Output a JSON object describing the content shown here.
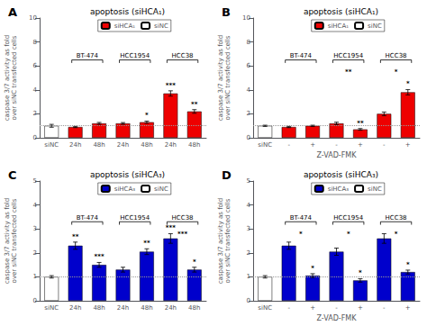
{
  "chart_data": [
    {
      "type": "bar",
      "panel_label": "A",
      "title": "apoptosis (siHCA₁)",
      "ylabel": "caspase 3/7 activity as fold\nover siNC transfected cells",
      "categories": [
        "siNC",
        "24h",
        "48h",
        "24h",
        "48h",
        "24h",
        "48h"
      ],
      "series": [
        {
          "name": "siHCA₁",
          "color": "#EE0000",
          "values": [
            null,
            0.9,
            1.2,
            1.2,
            1.3,
            3.7,
            2.2
          ],
          "errors": [
            null,
            0.05,
            0.08,
            0.07,
            0.09,
            0.22,
            0.15
          ],
          "stars": [
            null,
            null,
            null,
            null,
            "*",
            "***",
            "**"
          ]
        },
        {
          "name": "siNC",
          "color": "#FFFFFF",
          "values": [
            1.0,
            null,
            null,
            null,
            null,
            null,
            null
          ],
          "errors": [
            0.12,
            null,
            null,
            null,
            null,
            null,
            null
          ]
        }
      ],
      "brackets": [
        {
          "label": "BT-474",
          "star": null
        },
        {
          "label": "HCC1954",
          "star": null
        },
        {
          "label": "HCC38",
          "star": null
        }
      ],
      "bracket_y": 6.5,
      "hline": {
        "value": 1.0,
        "color": "#999999",
        "line_style": "dotted"
      },
      "ylim": [
        0,
        10
      ],
      "yticks": [
        0,
        2,
        4,
        6,
        8,
        10
      ],
      "grid": false,
      "legend": "top"
    },
    {
      "type": "bar",
      "panel_label": "B",
      "title": "apoptosis (siHCA₁)",
      "ylabel": "caspase 3/7 activity as fold\nover siNC transfected cells",
      "xlabel": "Z-VAD-FMK",
      "categories": [
        "siNC",
        "-",
        "+",
        "-",
        "+",
        "-",
        "+"
      ],
      "series": [
        {
          "name": "siHCA₁",
          "color": "#EE0000",
          "values": [
            null,
            0.9,
            1.0,
            1.2,
            0.7,
            2.0,
            3.8
          ],
          "errors": [
            null,
            0.05,
            0.05,
            0.1,
            0.07,
            0.15,
            0.22
          ],
          "stars": [
            null,
            null,
            null,
            null,
            "**",
            null,
            "*"
          ]
        },
        {
          "name": "siNC",
          "color": "#FFFFFF",
          "values": [
            1.0,
            null,
            null,
            null,
            null,
            null,
            null
          ],
          "errors": [
            0.05,
            null,
            null,
            null,
            null,
            null,
            null
          ]
        }
      ],
      "brackets": [
        {
          "label": "BT-474",
          "star": null
        },
        {
          "label": "HCC1954",
          "star": "**"
        },
        {
          "label": "HCC38",
          "star": "*"
        }
      ],
      "bracket_y": 6.5,
      "hline": {
        "value": 1.0,
        "color": "#999999",
        "line_style": "dotted"
      },
      "ylim": [
        0,
        10
      ],
      "yticks": [
        0,
        2,
        4,
        6,
        8,
        10
      ],
      "grid": false,
      "legend": "top"
    },
    {
      "type": "bar",
      "panel_label": "C",
      "title": "apoptosis (siHCA₃)",
      "ylabel": "caspase 3/7 activity as fold\nover siNC transfected cells",
      "categories": [
        "siNC",
        "24h",
        "48h",
        "24h",
        "48h",
        "24h",
        "48h"
      ],
      "series": [
        {
          "name": "siHCA₃",
          "color": "#0000CC",
          "values": [
            null,
            2.3,
            1.5,
            1.3,
            2.05,
            2.6,
            1.3
          ],
          "errors": [
            null,
            0.15,
            0.1,
            0.1,
            0.12,
            0.2,
            0.1
          ],
          "stars": [
            null,
            "**",
            "***",
            null,
            "**",
            "***",
            "*"
          ]
        },
        {
          "name": "siNC",
          "color": "#FFFFFF",
          "values": [
            1.0,
            null,
            null,
            null,
            null,
            null,
            null
          ],
          "errors": [
            0.05,
            null,
            null,
            null,
            null,
            null,
            null
          ]
        }
      ],
      "brackets": [
        {
          "label": "BT-474",
          "star": null
        },
        {
          "label": "HCC1954",
          "star": null
        },
        {
          "label": "HCC38",
          "star": "***"
        }
      ],
      "bracket_y": 3.3,
      "hline": {
        "value": 1.0,
        "color": "#999999",
        "line_style": "dotted"
      },
      "ylim": [
        0,
        5
      ],
      "yticks": [
        0,
        1,
        2,
        3,
        4,
        5
      ],
      "grid": false,
      "legend": "top"
    },
    {
      "type": "bar",
      "panel_label": "D",
      "title": "apoptosis (siHCA₃)",
      "ylabel": "caspase 3/7 activity as fold\nover siNC transfected cells",
      "xlabel": "Z-VAD-FMK",
      "categories": [
        "siNC",
        "-",
        "+",
        "-",
        "+",
        "-",
        "+"
      ],
      "series": [
        {
          "name": "siHCA₃",
          "color": "#0000CC",
          "values": [
            null,
            2.3,
            1.05,
            2.05,
            0.85,
            2.6,
            1.2
          ],
          "errors": [
            null,
            0.15,
            0.08,
            0.15,
            0.07,
            0.2,
            0.08
          ],
          "stars": [
            null,
            null,
            "*",
            null,
            "*",
            null,
            "*"
          ]
        },
        {
          "name": "siNC",
          "color": "#FFFFFF",
          "values": [
            1.0,
            null,
            null,
            null,
            null,
            null,
            null
          ],
          "errors": [
            0.05,
            null,
            null,
            null,
            null,
            null,
            null
          ]
        }
      ],
      "brackets": [
        {
          "label": "BT-474",
          "star": "*"
        },
        {
          "label": "HCC1954",
          "star": "*"
        },
        {
          "label": "HCC38",
          "star": "*"
        }
      ],
      "bracket_y": 3.3,
      "hline": {
        "value": 1.0,
        "color": "#999999",
        "line_style": "dotted"
      },
      "ylim": [
        0,
        5
      ],
      "yticks": [
        0,
        1,
        2,
        3,
        4,
        5
      ],
      "grid": false,
      "legend": "top"
    }
  ]
}
